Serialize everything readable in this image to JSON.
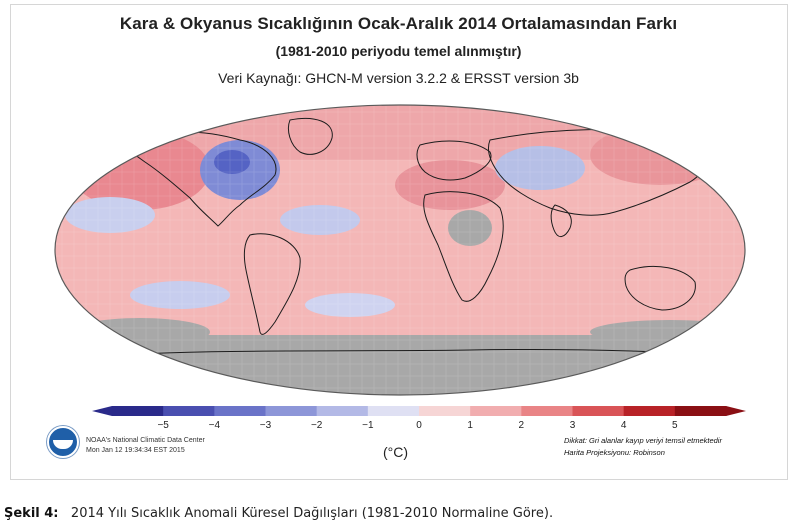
{
  "map": {
    "title": "Kara & Okyanus Sıcaklığının Ocak-Aralık 2014 Ortalamasından Farkı",
    "subtitle": "(1981-2010 periyodu temel alınmıştır)",
    "source": "Veri Kaynağı: GHCN-M version 3.2.2 & ERSST version 3b",
    "projection": "Robinson",
    "colors": {
      "ocean_warm": "#f4b7b7",
      "land_warm": "#efa3a6",
      "strong_warm": "#e0707a",
      "cool": "#b9c6e8",
      "strong_cool": "#5d6fc7",
      "missing": "#a8a8a8"
    }
  },
  "colorbar": {
    "ticks": [
      "−5",
      "−4",
      "−3",
      "−2",
      "−1",
      "0",
      "1",
      "2",
      "3",
      "4",
      "5"
    ],
    "min": -5,
    "max": 5,
    "unit": "(°C)",
    "colors": [
      "#2a2a8a",
      "#4a4fb0",
      "#6a73c8",
      "#8d96d8",
      "#b3b9e6",
      "#dfe0f3",
      "#f6d5d5",
      "#f1adaf",
      "#e98486",
      "#d95457",
      "#b82227",
      "#8a0f14"
    ]
  },
  "credits": {
    "line1": "NOAA's National Climatic Data Center",
    "line2": "Mon Jan 12 19:34:34 EST 2015",
    "logo": "noaa-logo"
  },
  "notes": {
    "line1": "Dikkat: Gri alanlar kayıp veriyi temsil etmektedir",
    "line2": "Harita Projeksiyonu: Robinson"
  },
  "caption": {
    "label": "Şekil 4:",
    "text": "2014 Yılı Sıcaklık Anomali Küresel Dağılışları (1981-2010 Normaline Göre)."
  }
}
